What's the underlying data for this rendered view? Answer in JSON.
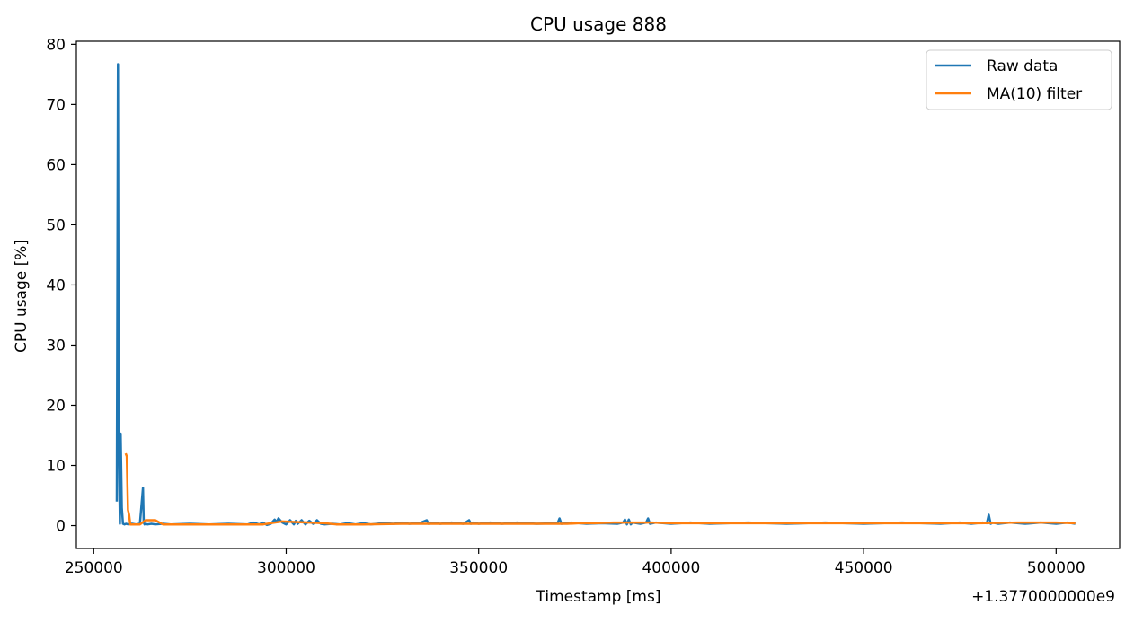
{
  "chart_data": {
    "type": "line",
    "title": "CPU usage 888",
    "xlabel": "Timestamp [ms]",
    "ylabel": "CPU usage [%]",
    "x_offset_label": "+1.3770000000e9",
    "xlim": [
      245500,
      516500
    ],
    "ylim": [
      -3.8,
      80.5
    ],
    "xticks": [
      250000,
      300000,
      350000,
      400000,
      450000,
      500000
    ],
    "xtick_labels": [
      "250000",
      "300000",
      "350000",
      "400000",
      "450000",
      "500000"
    ],
    "yticks": [
      0,
      10,
      20,
      30,
      40,
      50,
      60,
      70,
      80
    ],
    "ytick_labels": [
      "0",
      "10",
      "20",
      "30",
      "40",
      "50",
      "60",
      "70",
      "80"
    ],
    "grid": false,
    "legend_position": "upper-right",
    "series": [
      {
        "name": "Raw data",
        "color": "#1f77b4",
        "x": [
          256000,
          256300,
          256500,
          256800,
          257000,
          257300,
          257600,
          258000,
          258400,
          259000,
          259500,
          260000,
          261000,
          262000,
          262800,
          263000,
          263200,
          263500,
          264000,
          265000,
          266000,
          268000,
          270000,
          275000,
          280000,
          285000,
          290000,
          291500,
          293000,
          294000,
          295000,
          296000,
          297000,
          297500,
          298000,
          299000,
          300000,
          301000,
          302000,
          302500,
          303000,
          304000,
          305000,
          306000,
          307000,
          308000,
          309000,
          310000,
          312000,
          314000,
          316000,
          318000,
          320000,
          322000,
          325000,
          328000,
          330000,
          332000,
          335000,
          336500,
          337000,
          337500,
          340000,
          343000,
          346000,
          347500,
          348000,
          348500,
          350000,
          353000,
          356000,
          360000,
          365000,
          370500,
          371000,
          371500,
          374000,
          378000,
          382000,
          386000,
          387500,
          388000,
          388500,
          389000,
          389500,
          390000,
          392000,
          393500,
          394000,
          394500,
          396000,
          400000,
          405000,
          410000,
          420000,
          430000,
          440000,
          450000,
          460000,
          470000,
          475000,
          478000,
          481000,
          482000,
          482500,
          483000,
          483500,
          485000,
          488000,
          492000,
          496000,
          500000,
          503000,
          505000
        ],
        "y": [
          4.0,
          76.7,
          15.5,
          0.3,
          15.3,
          3.0,
          0.3,
          0.2,
          0.3,
          0.2,
          0.3,
          0.3,
          0.2,
          0.3,
          6.3,
          0.5,
          0.2,
          0.3,
          0.2,
          0.3,
          0.2,
          0.3,
          0.2,
          0.3,
          0.2,
          0.3,
          0.2,
          0.5,
          0.2,
          0.5,
          0.1,
          0.3,
          1.0,
          0.6,
          1.2,
          0.5,
          0.2,
          0.9,
          0.2,
          0.8,
          0.3,
          0.9,
          0.2,
          0.8,
          0.3,
          0.9,
          0.3,
          0.2,
          0.3,
          0.2,
          0.4,
          0.2,
          0.4,
          0.2,
          0.4,
          0.3,
          0.5,
          0.3,
          0.5,
          0.9,
          0.3,
          0.5,
          0.3,
          0.5,
          0.3,
          0.9,
          0.3,
          0.5,
          0.3,
          0.5,
          0.3,
          0.5,
          0.3,
          0.4,
          1.2,
          0.3,
          0.5,
          0.3,
          0.4,
          0.3,
          0.5,
          1.0,
          0.2,
          1.0,
          0.2,
          0.5,
          0.3,
          0.5,
          1.2,
          0.3,
          0.5,
          0.3,
          0.5,
          0.3,
          0.5,
          0.3,
          0.5,
          0.3,
          0.5,
          0.3,
          0.5,
          0.3,
          0.5,
          0.4,
          1.8,
          0.3,
          0.5,
          0.3,
          0.5,
          0.3,
          0.5,
          0.3,
          0.5,
          0.3
        ]
      },
      {
        "name": "MA(10) filter",
        "color": "#ff7f0e",
        "x": [
          258300,
          258600,
          258900,
          259200,
          259500,
          260000,
          262000,
          263500,
          266000,
          268000,
          290000,
          294000,
          297000,
          299000,
          302000,
          306000,
          310000,
          313000,
          320000,
          330000,
          340000,
          350000,
          360000,
          365000,
          370000,
          373000,
          376000,
          380000,
          385000,
          390000,
          395000,
          400000,
          420000,
          440000,
          460000,
          480000,
          490000,
          500000,
          505000
        ],
        "y": [
          12.0,
          11.5,
          2.6,
          1.8,
          0.2,
          0.2,
          0.2,
          0.9,
          0.9,
          0.2,
          0.2,
          0.2,
          0.5,
          0.7,
          0.6,
          0.5,
          0.4,
          0.2,
          0.2,
          0.3,
          0.3,
          0.3,
          0.3,
          0.3,
          0.3,
          0.3,
          0.4,
          0.4,
          0.5,
          0.5,
          0.5,
          0.4,
          0.4,
          0.4,
          0.4,
          0.4,
          0.5,
          0.5,
          0.4
        ]
      }
    ]
  }
}
